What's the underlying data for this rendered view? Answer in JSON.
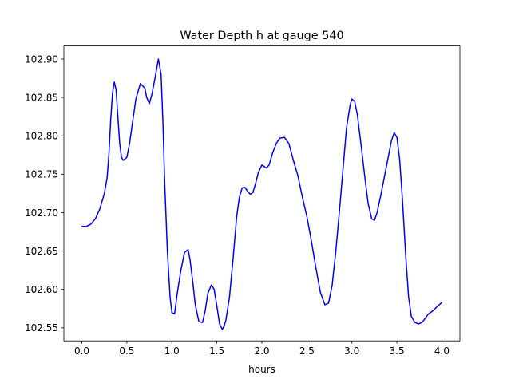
{
  "chart_data": {
    "type": "line",
    "title": "Water Depth h at gauge 540",
    "xlabel": "hours",
    "ylabel": "",
    "xlim": [
      -0.2,
      4.2
    ],
    "ylim": [
      102.533,
      102.917
    ],
    "xticks": [
      0.0,
      0.5,
      1.0,
      1.5,
      2.0,
      2.5,
      3.0,
      3.5,
      4.0
    ],
    "xtick_labels": [
      "0.0",
      "0.5",
      "1.0",
      "1.5",
      "2.0",
      "2.5",
      "3.0",
      "3.5",
      "4.0"
    ],
    "yticks": [
      102.55,
      102.6,
      102.65,
      102.7,
      102.75,
      102.8,
      102.85,
      102.9
    ],
    "ytick_labels": [
      "102.55",
      "102.60",
      "102.65",
      "102.70",
      "102.75",
      "102.80",
      "102.85",
      "102.90"
    ],
    "grid": false,
    "line_color": "#0000ff",
    "series": [
      {
        "x": [
          0.0,
          0.05,
          0.1,
          0.15,
          0.2,
          0.25,
          0.28,
          0.3,
          0.32,
          0.34,
          0.36,
          0.38,
          0.4,
          0.42,
          0.44,
          0.46,
          0.48,
          0.5,
          0.53,
          0.56,
          0.6,
          0.65,
          0.7,
          0.72,
          0.75,
          0.78,
          0.82,
          0.85,
          0.88,
          0.9,
          0.92,
          0.95,
          0.98,
          1.0,
          1.03,
          1.06,
          1.1,
          1.14,
          1.18,
          1.2,
          1.23,
          1.26,
          1.3,
          1.34,
          1.37,
          1.4,
          1.44,
          1.47,
          1.5,
          1.53,
          1.56,
          1.58,
          1.6,
          1.64,
          1.68,
          1.72,
          1.75,
          1.78,
          1.81,
          1.84,
          1.87,
          1.9,
          1.93,
          1.96,
          2.0,
          2.05,
          2.08,
          2.12,
          2.16,
          2.2,
          2.25,
          2.3,
          2.35,
          2.4,
          2.45,
          2.5,
          2.55,
          2.6,
          2.65,
          2.7,
          2.74,
          2.78,
          2.82,
          2.86,
          2.9,
          2.94,
          2.98,
          3.0,
          3.03,
          3.06,
          3.1,
          3.14,
          3.18,
          3.22,
          3.25,
          3.28,
          3.32,
          3.36,
          3.4,
          3.44,
          3.47,
          3.5,
          3.53,
          3.56,
          3.6,
          3.63,
          3.66,
          3.7,
          3.74,
          3.78,
          3.8,
          3.85,
          3.9,
          3.95,
          4.0
        ],
        "y": [
          102.682,
          102.682,
          102.685,
          102.692,
          102.705,
          102.725,
          102.745,
          102.775,
          102.82,
          102.855,
          102.87,
          102.86,
          102.825,
          102.79,
          102.772,
          102.768,
          102.77,
          102.772,
          102.79,
          102.815,
          102.848,
          102.868,
          102.862,
          102.85,
          102.842,
          102.855,
          102.88,
          102.9,
          102.88,
          102.82,
          102.74,
          102.65,
          102.59,
          102.57,
          102.568,
          102.595,
          102.625,
          102.648,
          102.652,
          102.64,
          102.612,
          102.58,
          102.558,
          102.557,
          102.572,
          102.595,
          102.606,
          102.6,
          102.578,
          102.555,
          102.548,
          102.552,
          102.56,
          102.59,
          102.64,
          102.695,
          102.72,
          102.732,
          102.733,
          102.728,
          102.724,
          102.726,
          102.738,
          102.752,
          102.762,
          102.758,
          102.762,
          102.778,
          102.79,
          102.797,
          102.798,
          102.79,
          102.768,
          102.748,
          102.72,
          102.695,
          102.663,
          102.628,
          102.596,
          102.58,
          102.582,
          102.605,
          102.648,
          102.7,
          102.755,
          102.81,
          102.84,
          102.848,
          102.845,
          102.828,
          102.79,
          102.75,
          102.712,
          102.692,
          102.69,
          102.7,
          102.722,
          102.746,
          102.77,
          102.794,
          102.804,
          102.798,
          102.77,
          102.72,
          102.64,
          102.59,
          102.565,
          102.557,
          102.555,
          102.557,
          102.56,
          102.568,
          102.572,
          102.578,
          102.583
        ]
      }
    ]
  }
}
